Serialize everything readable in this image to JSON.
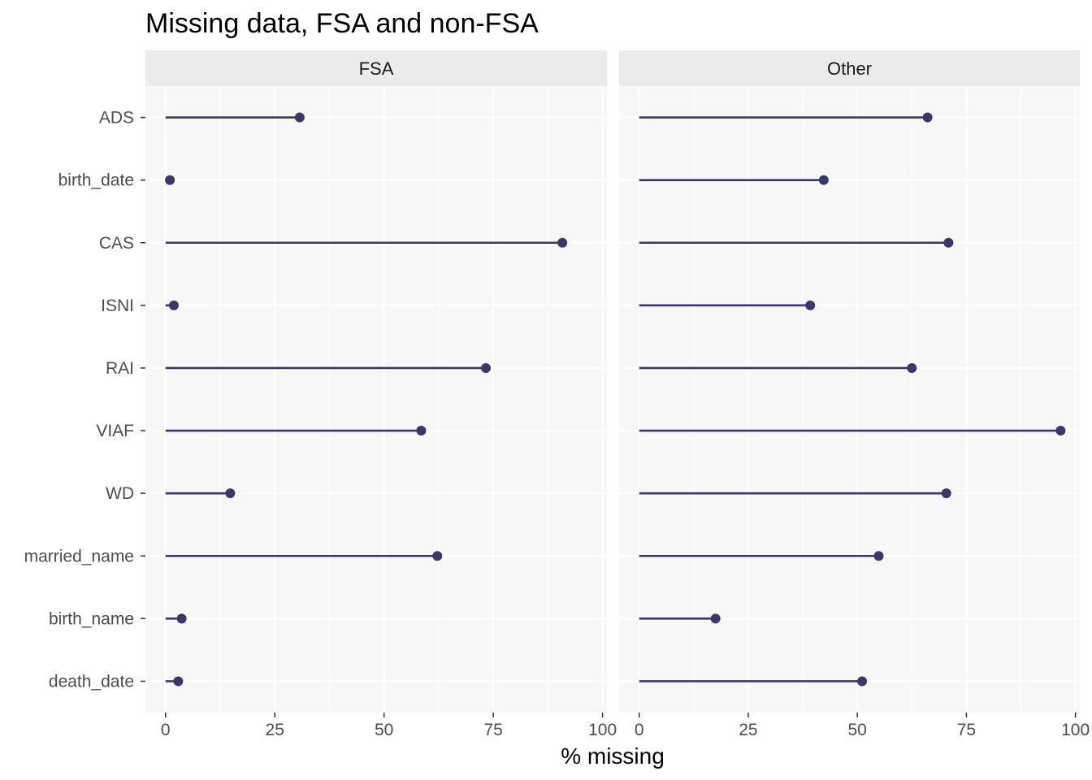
{
  "chart_data": {
    "type": "lollipop",
    "title": "Missing data, FSA and non-FSA",
    "xlabel": "% missing",
    "ylabel": "",
    "xlim": [
      -4.6,
      101
    ],
    "x_ticks": [
      0,
      25,
      50,
      75,
      100
    ],
    "x_tick_labels": [
      "0",
      "25",
      "50",
      "75",
      "100"
    ],
    "categories": [
      "ADS",
      "birth_date",
      "CAS",
      "ISNI",
      "RAI",
      "VIAF",
      "WD",
      "married_name",
      "birth_name",
      "death_date"
    ],
    "facets": [
      {
        "name": "FSA",
        "values": [
          30.7,
          1.0,
          90.8,
          1.9,
          73.3,
          58.5,
          14.8,
          62.2,
          3.7,
          2.9
        ]
      },
      {
        "name": "Other",
        "values": [
          66.1,
          42.3,
          70.9,
          39.2,
          62.5,
          96.6,
          70.4,
          54.9,
          17.5,
          51.1
        ]
      }
    ],
    "grid": true,
    "colors": {
      "marker": "#3b3868",
      "panel_background": "#f7f7f7",
      "strip_background": "#ebebeb",
      "grid_line": "#ffffff"
    }
  }
}
